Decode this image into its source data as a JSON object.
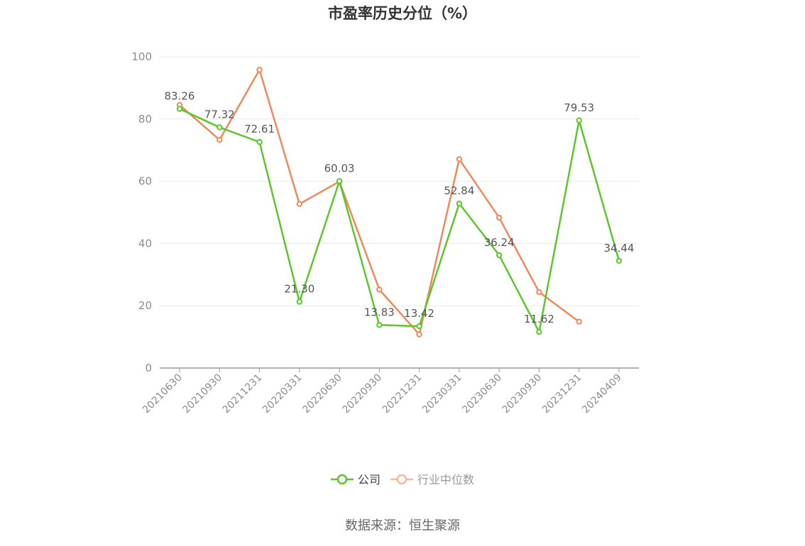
{
  "chart_data": {
    "type": "line",
    "title": "市盈率历史分位（%）",
    "categories": [
      "20210630",
      "20210930",
      "20211231",
      "20220331",
      "20220630",
      "20220930",
      "20221231",
      "20230331",
      "20230630",
      "20230930",
      "20231231",
      "20240409"
    ],
    "ylim": [
      0,
      100
    ],
    "yticks": [
      0,
      20,
      40,
      60,
      80,
      100
    ],
    "grid": true,
    "legend_position": "bottom",
    "series": [
      {
        "name": "公司",
        "color": "#5cc72c",
        "values": [
          83.26,
          77.32,
          72.61,
          21.3,
          60.03,
          13.83,
          13.42,
          52.84,
          36.24,
          11.62,
          79.53,
          34.44
        ],
        "labels": [
          "83.26",
          "77.32",
          "72.61",
          "21.30",
          "60.03",
          "13.83",
          "13.42",
          "52.84",
          "36.24",
          "11.62",
          "79.53",
          "34.44"
        ]
      },
      {
        "name": "行业中位数",
        "color": "#f0895a",
        "values": [
          84.5,
          73.3,
          95.8,
          52.7,
          59.9,
          25.2,
          10.8,
          67.1,
          48.3,
          24.4,
          14.9,
          null
        ]
      }
    ],
    "source": "数据来源：恒生聚源"
  }
}
